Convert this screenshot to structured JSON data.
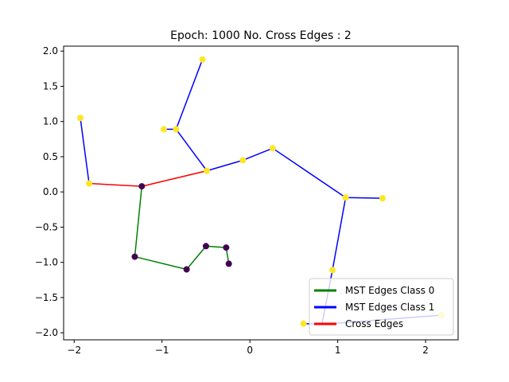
{
  "chart_data": {
    "type": "scatter",
    "title": "Epoch: 1000 No. Cross Edges : 2",
    "xlabel": "",
    "ylabel": "",
    "xlim": [
      -2.12,
      2.37
    ],
    "ylim": [
      -2.1,
      2.07
    ],
    "xticks": [
      -2,
      -1,
      0,
      1,
      2
    ],
    "xtick_labels": [
      "−2",
      "−1",
      "0",
      "1",
      "2"
    ],
    "yticks": [
      -2.0,
      -1.5,
      -1.0,
      -0.5,
      0.0,
      0.5,
      1.0,
      1.5,
      2.0
    ],
    "ytick_labels": [
      "−2.0",
      "−1.5",
      "−1.0",
      "−0.5",
      "0.0",
      "0.5",
      "1.0",
      "1.5",
      "2.0"
    ],
    "grid": false,
    "legend_position": "lower-right",
    "colors": {
      "class0_point": "#440154",
      "class1_point": "#fde725",
      "class0_edge": "#008000",
      "class1_edge": "#0000ff",
      "cross_edge": "#ff0000"
    },
    "points": [
      {
        "x": -1.93,
        "y": 1.05,
        "class": 1
      },
      {
        "x": -1.83,
        "y": 0.12,
        "class": 1
      },
      {
        "x": -0.98,
        "y": 0.89,
        "class": 1
      },
      {
        "x": -0.84,
        "y": 0.89,
        "class": 1
      },
      {
        "x": -0.54,
        "y": 1.88,
        "class": 1
      },
      {
        "x": -0.49,
        "y": 0.3,
        "class": 1
      },
      {
        "x": -0.08,
        "y": 0.45,
        "class": 1
      },
      {
        "x": 0.26,
        "y": 0.62,
        "class": 1
      },
      {
        "x": 1.09,
        "y": -0.08,
        "class": 1
      },
      {
        "x": 1.51,
        "y": -0.09,
        "class": 1
      },
      {
        "x": 0.94,
        "y": -1.11,
        "class": 1
      },
      {
        "x": 0.61,
        "y": -1.87,
        "class": 1
      },
      {
        "x": 2.18,
        "y": -1.75,
        "class": 1
      },
      {
        "x": -1.23,
        "y": 0.08,
        "class": 0
      },
      {
        "x": -1.31,
        "y": -0.92,
        "class": 0
      },
      {
        "x": -0.72,
        "y": -1.1,
        "class": 0
      },
      {
        "x": -0.5,
        "y": -0.77,
        "class": 0
      },
      {
        "x": -0.27,
        "y": -0.79,
        "class": 0
      },
      {
        "x": -0.24,
        "y": -1.02,
        "class": 0
      }
    ],
    "series": [
      {
        "name": "MST Edges Class 0",
        "edges": [
          [
            [
              -1.23,
              0.08
            ],
            [
              -1.31,
              -0.92
            ]
          ],
          [
            [
              -1.31,
              -0.92
            ],
            [
              -0.72,
              -1.1
            ]
          ],
          [
            [
              -0.72,
              -1.1
            ],
            [
              -0.5,
              -0.77
            ]
          ],
          [
            [
              -0.5,
              -0.77
            ],
            [
              -0.27,
              -0.79
            ]
          ],
          [
            [
              -0.27,
              -0.79
            ],
            [
              -0.24,
              -1.02
            ]
          ]
        ]
      },
      {
        "name": "MST Edges Class 1",
        "edges": [
          [
            [
              -1.93,
              1.05
            ],
            [
              -1.83,
              0.12
            ]
          ],
          [
            [
              -0.54,
              1.88
            ],
            [
              -0.84,
              0.89
            ]
          ],
          [
            [
              -0.98,
              0.89
            ],
            [
              -0.84,
              0.89
            ]
          ],
          [
            [
              -0.84,
              0.89
            ],
            [
              -0.49,
              0.3
            ]
          ],
          [
            [
              -0.49,
              0.3
            ],
            [
              -0.08,
              0.45
            ]
          ],
          [
            [
              -0.08,
              0.45
            ],
            [
              0.26,
              0.62
            ]
          ],
          [
            [
              0.26,
              0.62
            ],
            [
              1.09,
              -0.08
            ]
          ],
          [
            [
              1.09,
              -0.08
            ],
            [
              1.51,
              -0.09
            ]
          ],
          [
            [
              1.09,
              -0.08
            ],
            [
              0.94,
              -1.11
            ]
          ],
          [
            [
              0.94,
              -1.11
            ],
            [
              0.82,
              -1.88
            ]
          ],
          [
            [
              0.61,
              -1.87
            ],
            [
              0.82,
              -1.88
            ]
          ],
          [
            [
              0.82,
              -1.88
            ],
            [
              2.18,
              -1.75
            ]
          ]
        ]
      },
      {
        "name": "Cross Edges",
        "edges": [
          [
            [
              -1.83,
              0.12
            ],
            [
              -1.23,
              0.08
            ]
          ],
          [
            [
              -1.23,
              0.08
            ],
            [
              -0.49,
              0.3
            ]
          ]
        ]
      }
    ]
  }
}
